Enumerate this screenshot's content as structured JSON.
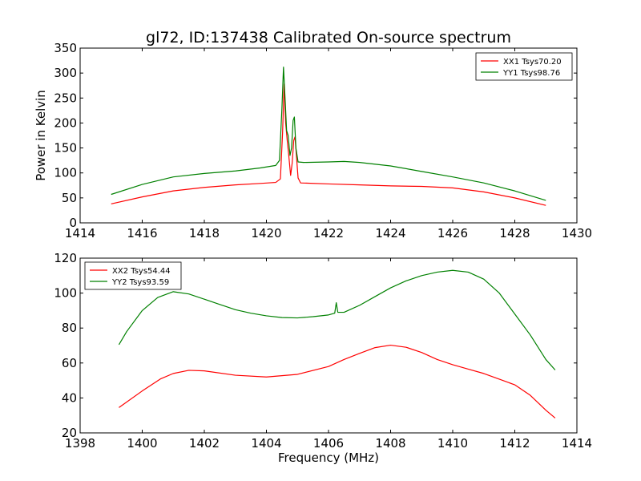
{
  "figure": {
    "title": "gl72, ID:137438 Calibrated On-source spectrum"
  },
  "chart_data": [
    {
      "type": "line",
      "title": "gl72, ID:137438 Calibrated On-source spectrum",
      "xlabel": "",
      "ylabel": "Power in Kelvin",
      "xlim": [
        1414,
        1430
      ],
      "ylim": [
        0,
        350
      ],
      "xticks": [
        "1414",
        "1416",
        "1418",
        "1420",
        "1422",
        "1424",
        "1426",
        "1428",
        "1430"
      ],
      "yticks": [
        "0",
        "50",
        "100",
        "150",
        "200",
        "250",
        "300",
        "350"
      ],
      "grid": false,
      "legend_position": "top-right",
      "series": [
        {
          "name": "XX1 Tsys70.20",
          "color": "#ff0000",
          "points": [
            [
              1415.0,
              38
            ],
            [
              1416.0,
              52
            ],
            [
              1417.0,
              64
            ],
            [
              1418.0,
              71
            ],
            [
              1419.0,
              76
            ],
            [
              1419.8,
              79
            ],
            [
              1420.3,
              81
            ],
            [
              1420.45,
              88
            ],
            [
              1420.52,
              180
            ],
            [
              1420.57,
              278
            ],
            [
              1420.62,
              200
            ],
            [
              1420.67,
              165
            ],
            [
              1420.72,
              135
            ],
            [
              1420.78,
              95
            ],
            [
              1420.83,
              120
            ],
            [
              1420.88,
              165
            ],
            [
              1420.92,
              172
            ],
            [
              1420.96,
              140
            ],
            [
              1421.02,
              90
            ],
            [
              1421.1,
              80
            ],
            [
              1422.0,
              78
            ],
            [
              1423.0,
              76
            ],
            [
              1424.0,
              74
            ],
            [
              1425.0,
              73
            ],
            [
              1426.0,
              70
            ],
            [
              1427.0,
              62
            ],
            [
              1428.0,
              50
            ],
            [
              1429.0,
              35
            ]
          ]
        },
        {
          "name": "YY1 Tsys98.76",
          "color": "#008000",
          "points": [
            [
              1415.0,
              57
            ],
            [
              1416.0,
              77
            ],
            [
              1417.0,
              92
            ],
            [
              1418.0,
              99
            ],
            [
              1419.0,
              104
            ],
            [
              1419.8,
              110
            ],
            [
              1420.3,
              115
            ],
            [
              1420.42,
              125
            ],
            [
              1420.5,
              230
            ],
            [
              1420.55,
              312
            ],
            [
              1420.6,
              250
            ],
            [
              1420.65,
              185
            ],
            [
              1420.7,
              175
            ],
            [
              1420.76,
              135
            ],
            [
              1420.81,
              150
            ],
            [
              1420.86,
              205
            ],
            [
              1420.9,
              212
            ],
            [
              1420.95,
              150
            ],
            [
              1421.02,
              122
            ],
            [
              1421.2,
              121
            ],
            [
              1422.0,
              122
            ],
            [
              1422.5,
              123
            ],
            [
              1423.0,
              121
            ],
            [
              1424.0,
              114
            ],
            [
              1425.0,
              103
            ],
            [
              1426.0,
              92
            ],
            [
              1427.0,
              80
            ],
            [
              1428.0,
              64
            ],
            [
              1429.0,
              45
            ]
          ]
        }
      ]
    },
    {
      "type": "line",
      "title": "",
      "xlabel": "Frequency (MHz)",
      "ylabel": "",
      "xlim": [
        1398,
        1414
      ],
      "ylim": [
        20,
        120
      ],
      "xticks": [
        "1398",
        "1400",
        "1402",
        "1404",
        "1406",
        "1408",
        "1410",
        "1412",
        "1414"
      ],
      "yticks": [
        "20",
        "40",
        "60",
        "80",
        "100",
        "120"
      ],
      "grid": false,
      "legend_position": "top-left",
      "series": [
        {
          "name": "XX2 Tsys54.44",
          "color": "#ff0000",
          "points": [
            [
              1399.25,
              34.5
            ],
            [
              1400.0,
              44
            ],
            [
              1400.6,
              51
            ],
            [
              1401.0,
              54
            ],
            [
              1401.5,
              55.8
            ],
            [
              1402.0,
              55.5
            ],
            [
              1403.0,
              53
            ],
            [
              1404.0,
              52
            ],
            [
              1405.0,
              53.5
            ],
            [
              1406.0,
              58
            ],
            [
              1406.5,
              62
            ],
            [
              1407.0,
              65.5
            ],
            [
              1407.5,
              68.8
            ],
            [
              1408.0,
              70.2
            ],
            [
              1408.5,
              69
            ],
            [
              1409.0,
              66
            ],
            [
              1409.5,
              62
            ],
            [
              1410.0,
              59
            ],
            [
              1410.5,
              56.5
            ],
            [
              1411.0,
              54
            ],
            [
              1412.0,
              47.5
            ],
            [
              1412.5,
              41.5
            ],
            [
              1413.0,
              33
            ],
            [
              1413.3,
              28.5
            ]
          ]
        },
        {
          "name": "YY2 Tsys93.59",
          "color": "#008000",
          "points": [
            [
              1399.25,
              70.5
            ],
            [
              1399.5,
              78
            ],
            [
              1400.0,
              90
            ],
            [
              1400.5,
              97.5
            ],
            [
              1401.0,
              100.8
            ],
            [
              1401.5,
              99.5
            ],
            [
              1402.0,
              96.5
            ],
            [
              1402.5,
              93.5
            ],
            [
              1403.0,
              90.5
            ],
            [
              1403.5,
              88.5
            ],
            [
              1404.0,
              87
            ],
            [
              1404.5,
              86
            ],
            [
              1405.0,
              85.8
            ],
            [
              1405.5,
              86.5
            ],
            [
              1406.0,
              87.5
            ],
            [
              1406.2,
              88.5
            ],
            [
              1406.25,
              94.5
            ],
            [
              1406.3,
              89
            ],
            [
              1406.5,
              89
            ],
            [
              1407.0,
              93
            ],
            [
              1407.5,
              98
            ],
            [
              1408.0,
              103
            ],
            [
              1408.5,
              107
            ],
            [
              1409.0,
              110
            ],
            [
              1409.5,
              112
            ],
            [
              1410.0,
              113
            ],
            [
              1410.5,
              112
            ],
            [
              1411.0,
              108
            ],
            [
              1411.5,
              100
            ],
            [
              1412.0,
              88
            ],
            [
              1412.5,
              76
            ],
            [
              1413.0,
              62
            ],
            [
              1413.3,
              56
            ]
          ]
        }
      ]
    }
  ]
}
